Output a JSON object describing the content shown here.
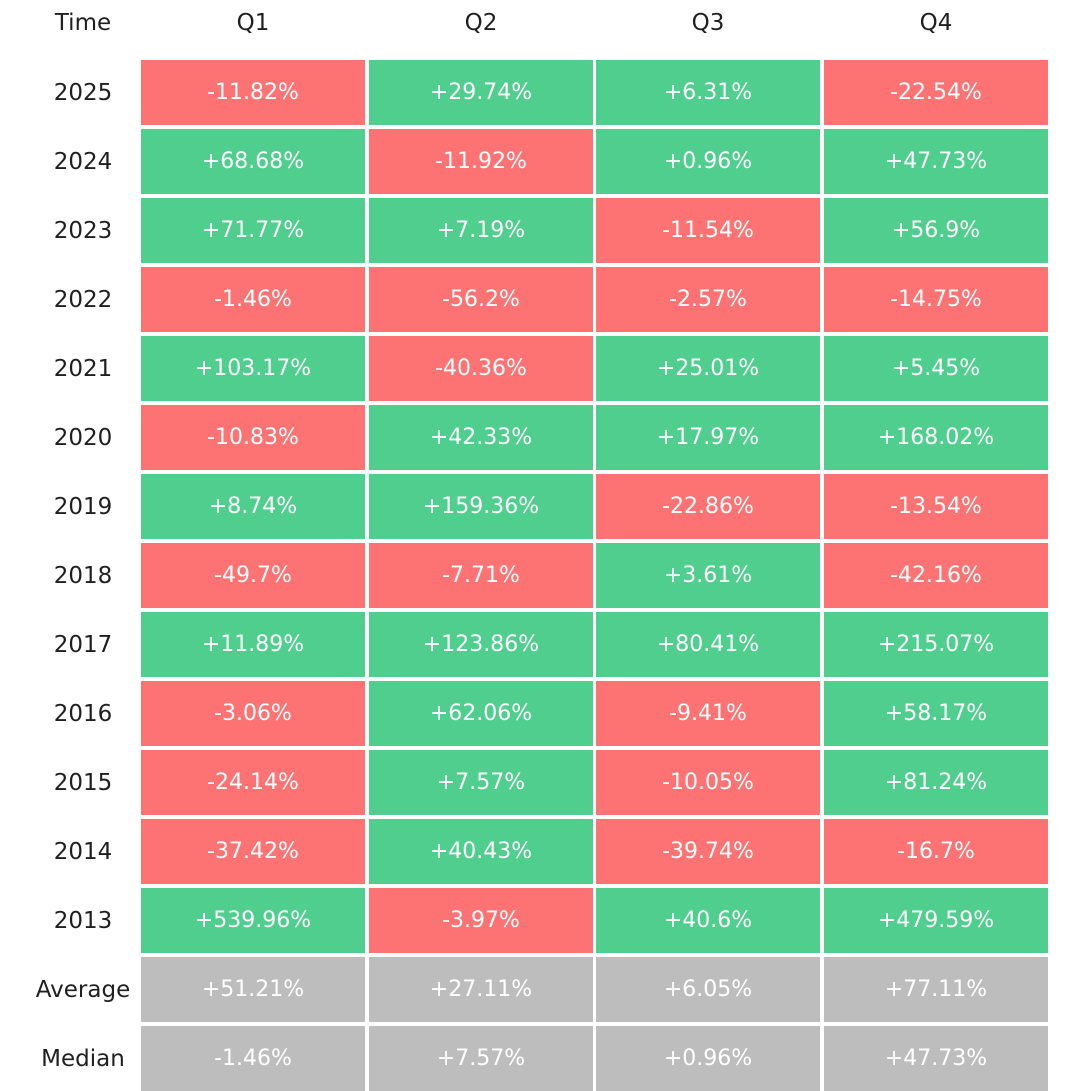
{
  "chart_data": {
    "type": "heatmap",
    "corner_label": "Time",
    "columns": [
      "Q1",
      "Q2",
      "Q3",
      "Q4"
    ],
    "rows": [
      {
        "label": "2025",
        "kind": "year",
        "values": [
          "-11.82%",
          "+29.74%",
          "+6.31%",
          "-22.54%"
        ]
      },
      {
        "label": "2024",
        "kind": "year",
        "values": [
          "+68.68%",
          "-11.92%",
          "+0.96%",
          "+47.73%"
        ]
      },
      {
        "label": "2023",
        "kind": "year",
        "values": [
          "+71.77%",
          "+7.19%",
          "-11.54%",
          "+56.9%"
        ]
      },
      {
        "label": "2022",
        "kind": "year",
        "values": [
          "-1.46%",
          "-56.2%",
          "-2.57%",
          "-14.75%"
        ]
      },
      {
        "label": "2021",
        "kind": "year",
        "values": [
          "+103.17%",
          "-40.36%",
          "+25.01%",
          "+5.45%"
        ]
      },
      {
        "label": "2020",
        "kind": "year",
        "values": [
          "-10.83%",
          "+42.33%",
          "+17.97%",
          "+168.02%"
        ]
      },
      {
        "label": "2019",
        "kind": "year",
        "values": [
          "+8.74%",
          "+159.36%",
          "-22.86%",
          "-13.54%"
        ]
      },
      {
        "label": "2018",
        "kind": "year",
        "values": [
          "-49.7%",
          "-7.71%",
          "+3.61%",
          "-42.16%"
        ]
      },
      {
        "label": "2017",
        "kind": "year",
        "values": [
          "+11.89%",
          "+123.86%",
          "+80.41%",
          "+215.07%"
        ]
      },
      {
        "label": "2016",
        "kind": "year",
        "values": [
          "-3.06%",
          "+62.06%",
          "-9.41%",
          "+58.17%"
        ]
      },
      {
        "label": "2015",
        "kind": "year",
        "values": [
          "-24.14%",
          "+7.57%",
          "-10.05%",
          "+81.24%"
        ]
      },
      {
        "label": "2014",
        "kind": "year",
        "values": [
          "-37.42%",
          "+40.43%",
          "-39.74%",
          "-16.7%"
        ]
      },
      {
        "label": "2013",
        "kind": "year",
        "values": [
          "+539.96%",
          "-3.97%",
          "+40.6%",
          "+479.59%"
        ]
      },
      {
        "label": "Average",
        "kind": "summary",
        "values": [
          "+51.21%",
          "+27.11%",
          "+6.05%",
          "+77.11%"
        ]
      },
      {
        "label": "Median",
        "kind": "summary",
        "values": [
          "-1.46%",
          "+7.57%",
          "+0.96%",
          "+47.73%"
        ]
      }
    ],
    "colors": {
      "positive": "#4fce8d",
      "negative": "#fd7374",
      "summary": "#bdbdbd"
    }
  }
}
